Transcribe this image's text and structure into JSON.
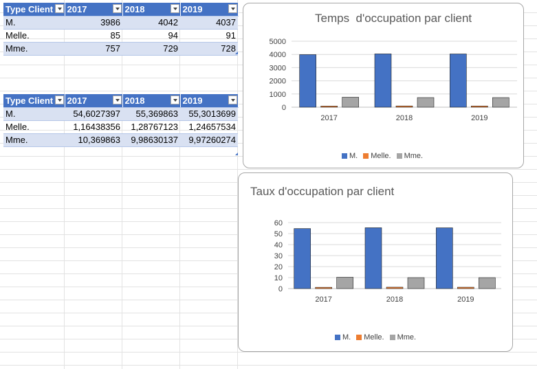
{
  "table1": {
    "headers": [
      "Type Client",
      "2017",
      "2018",
      "2019"
    ],
    "rows": [
      [
        "M.",
        "3986",
        "4042",
        "4037"
      ],
      [
        "Melle.",
        "85",
        "94",
        "91"
      ],
      [
        "Mme.",
        "757",
        "729",
        "728"
      ]
    ]
  },
  "table2": {
    "headers": [
      "Type Client",
      "2017",
      "2018",
      "2019"
    ],
    "rows": [
      [
        "M.",
        "54,6027397",
        "55,369863",
        "55,3013699"
      ],
      [
        "Melle.",
        "1,16438356",
        "1,28767123",
        "1,24657534"
      ],
      [
        "Mme.",
        "10,369863",
        "9,98630137",
        "9,97260274"
      ]
    ]
  },
  "colors": {
    "M.": "#4472c4",
    "Melle.": "#ed7d31",
    "Mme.": "#a5a5a5",
    "header": "#4472c4",
    "band": "#d9e1f2"
  },
  "chart_data": [
    {
      "type": "bar",
      "title": "Temps  d'occupation par client",
      "categories": [
        "2017",
        "2018",
        "2019"
      ],
      "series": [
        {
          "name": "M.",
          "values": [
            3986,
            4042,
            4037
          ]
        },
        {
          "name": "Melle.",
          "values": [
            85,
            94,
            91
          ]
        },
        {
          "name": "Mme.",
          "values": [
            757,
            729,
            728
          ]
        }
      ],
      "ylim": [
        0,
        5000
      ],
      "yticks": [
        "0",
        "1000",
        "2000",
        "3000",
        "4000",
        "5000"
      ],
      "grid": true,
      "legend": "bottom"
    },
    {
      "type": "bar",
      "title": "Taux d'occupation par client",
      "categories": [
        "2017",
        "2018",
        "2019"
      ],
      "series": [
        {
          "name": "M.",
          "values": [
            54.6027397,
            55.369863,
            55.3013699
          ]
        },
        {
          "name": "Melle.",
          "values": [
            1.16438356,
            1.28767123,
            1.24657534
          ]
        },
        {
          "name": "Mme.",
          "values": [
            10.369863,
            9.98630137,
            9.97260274
          ]
        }
      ],
      "ylim": [
        0,
        60
      ],
      "yticks": [
        "0",
        "10",
        "20",
        "30",
        "40",
        "50",
        "60"
      ],
      "grid": true,
      "legend": "bottom"
    }
  ]
}
